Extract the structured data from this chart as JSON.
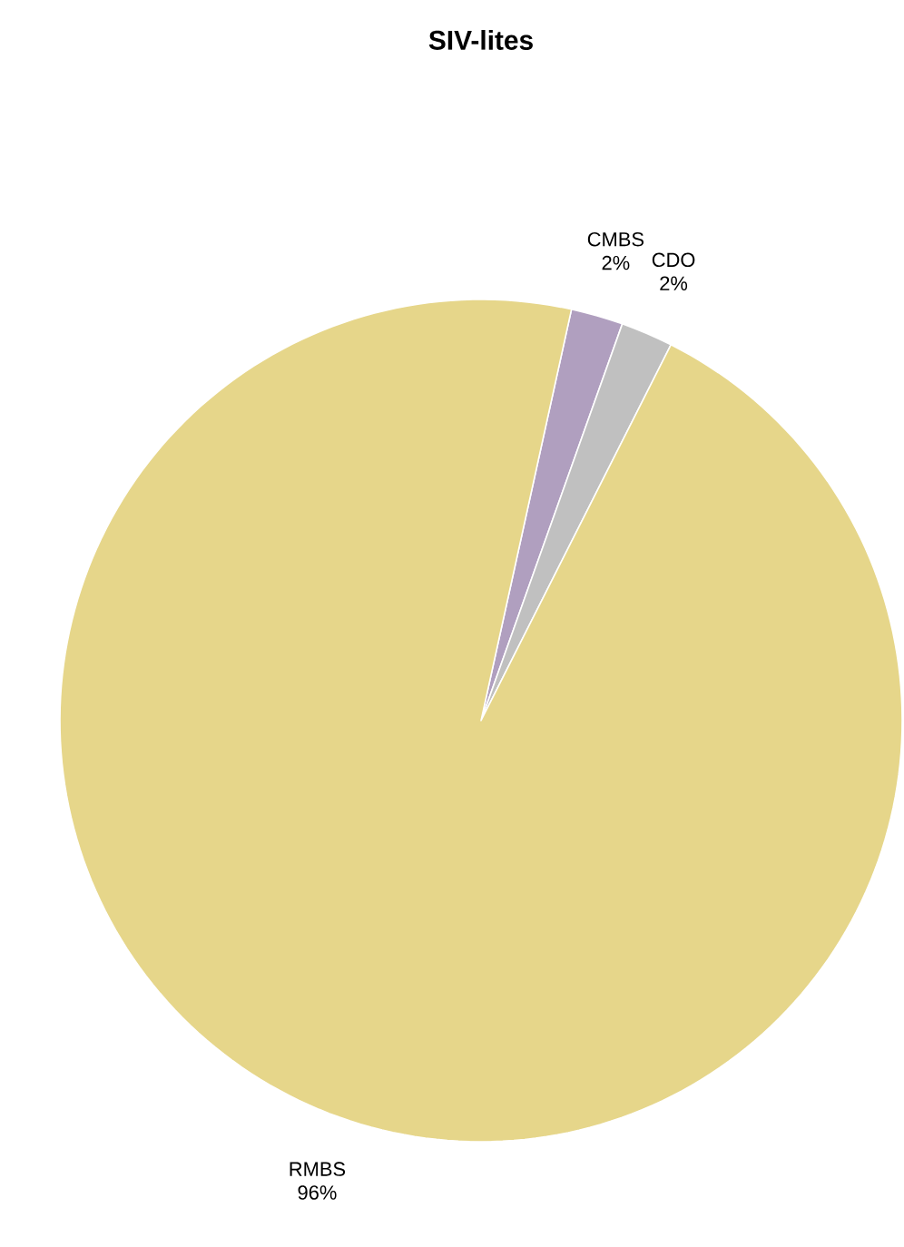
{
  "chart_data": {
    "type": "pie",
    "title": "SIV-lites",
    "categories": [
      "CMBS",
      "CDO",
      "RMBS"
    ],
    "values": [
      2,
      2,
      96
    ],
    "value_labels": [
      "2%",
      "2%",
      "96%"
    ],
    "colors": [
      "#b09fbf",
      "#c0c0c0",
      "#e6d68a"
    ]
  }
}
